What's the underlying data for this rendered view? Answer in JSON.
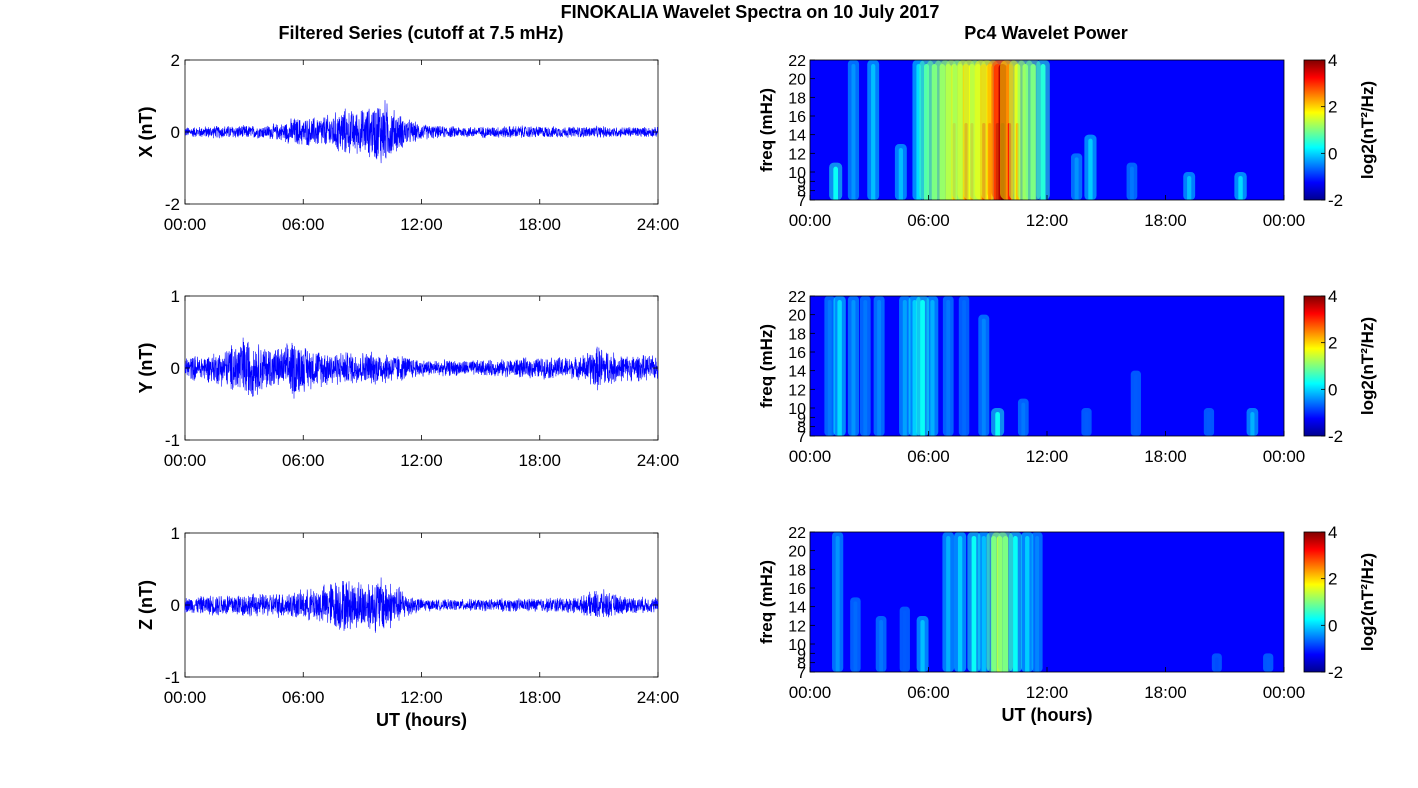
{
  "figure": {
    "title": "FINOKALIA Wavelet Spectra on 10 July 2017",
    "left_title": "Filtered Series (cutoff at 7.5 mHz)",
    "right_title": "Pc4 Wavelet Power"
  },
  "chart_data": [
    {
      "type": "line",
      "component": "X",
      "ylabel": "X (nT)",
      "xlabel": "",
      "color": "#0000ff",
      "xlim": [
        "00:00",
        "24:00"
      ],
      "ylim": [
        -2,
        2
      ],
      "yticks": [
        -2,
        0,
        2
      ],
      "xticks": [
        "00:00",
        "06:00",
        "12:00",
        "18:00",
        "24:00"
      ],
      "envelope_hours": [
        0,
        1,
        2,
        3,
        4,
        5,
        5.5,
        6,
        6.5,
        7,
        7.5,
        8,
        8.5,
        9,
        9.5,
        10,
        10.5,
        11,
        11.5,
        12,
        13,
        14,
        15,
        16,
        17,
        18,
        19,
        20,
        21,
        22,
        23,
        24
      ],
      "envelope_amp_nT": [
        0.15,
        0.18,
        0.2,
        0.2,
        0.2,
        0.28,
        0.45,
        0.42,
        0.45,
        0.5,
        0.55,
        0.75,
        0.65,
        0.7,
        0.8,
        1.1,
        0.75,
        0.5,
        0.35,
        0.25,
        0.18,
        0.17,
        0.17,
        0.18,
        0.2,
        0.18,
        0.17,
        0.17,
        0.18,
        0.16,
        0.16,
        0.15
      ]
    },
    {
      "type": "line",
      "component": "Y",
      "ylabel": "Y (nT)",
      "xlabel": "",
      "color": "#0000ff",
      "xlim": [
        "00:00",
        "24:00"
      ],
      "ylim": [
        -1,
        1
      ],
      "yticks": [
        -1,
        0,
        1
      ],
      "xticks": [
        "00:00",
        "06:00",
        "12:00",
        "18:00",
        "24:00"
      ],
      "envelope_hours": [
        0,
        1,
        2,
        3,
        4,
        5,
        5.5,
        6,
        6.5,
        7,
        8,
        9,
        10,
        11,
        12,
        13,
        14,
        15,
        16,
        17,
        18,
        19,
        20,
        21,
        22,
        23,
        24
      ],
      "envelope_amp_nT": [
        0.18,
        0.2,
        0.28,
        0.5,
        0.35,
        0.3,
        0.48,
        0.35,
        0.3,
        0.28,
        0.25,
        0.25,
        0.25,
        0.2,
        0.13,
        0.12,
        0.12,
        0.12,
        0.13,
        0.15,
        0.16,
        0.17,
        0.17,
        0.35,
        0.2,
        0.2,
        0.18
      ]
    },
    {
      "type": "line",
      "component": "Z",
      "ylabel": "Z (nT)",
      "xlabel": "UT (hours)",
      "color": "#0000ff",
      "xlim": [
        "00:00",
        "24:00"
      ],
      "ylim": [
        -1,
        1
      ],
      "yticks": [
        -1,
        0,
        1
      ],
      "xticks": [
        "00:00",
        "06:00",
        "12:00",
        "18:00",
        "24:00"
      ],
      "envelope_hours": [
        0,
        1,
        2,
        3,
        4,
        5,
        6,
        7,
        7.5,
        8,
        8.5,
        9,
        9.5,
        10,
        10.5,
        11,
        11.5,
        12,
        13,
        14,
        15,
        16,
        17,
        18,
        19,
        20,
        21,
        22,
        23,
        24
      ],
      "envelope_amp_nT": [
        0.12,
        0.14,
        0.18,
        0.18,
        0.17,
        0.2,
        0.22,
        0.3,
        0.38,
        0.42,
        0.38,
        0.38,
        0.4,
        0.45,
        0.35,
        0.25,
        0.15,
        0.1,
        0.08,
        0.09,
        0.09,
        0.1,
        0.1,
        0.11,
        0.12,
        0.12,
        0.25,
        0.15,
        0.12,
        0.12
      ]
    },
    {
      "type": "heatmap",
      "component": "X",
      "ylabel": "freq (mHz)",
      "xlabel": "",
      "xticks": [
        "00:00",
        "06:00",
        "12:00",
        "18:00",
        "00:00"
      ],
      "yticks": [
        7,
        8,
        9,
        10,
        12,
        14,
        16,
        18,
        20,
        22
      ],
      "ylim_mHz": [
        7,
        22
      ],
      "colorbar": {
        "label": "log2(nT²/Hz)",
        "range": [
          -2,
          4
        ],
        "ticks": [
          -2,
          0,
          2,
          4
        ],
        "colormap": "jet"
      },
      "background_power": -2,
      "streaks": [
        {
          "hour": 1.3,
          "power": 0.0,
          "fmax_mHz": 11
        },
        {
          "hour": 2.2,
          "power": -0.8,
          "fmax_mHz": 22
        },
        {
          "hour": 3.2,
          "power": -0.5,
          "fmax_mHz": 22
        },
        {
          "hour": 4.6,
          "power": -0.5,
          "fmax_mHz": 13
        },
        {
          "hour": 5.5,
          "power": -0.3,
          "fmax_mHz": 22
        },
        {
          "hour": 5.9,
          "power": 0.5,
          "fmax_mHz": 22
        },
        {
          "hour": 6.3,
          "power": 0.8,
          "fmax_mHz": 22
        },
        {
          "hour": 6.7,
          "power": 1.0,
          "fmax_mHz": 22
        },
        {
          "hour": 7.0,
          "power": 1.2,
          "fmax_mHz": 22
        },
        {
          "hour": 7.3,
          "power": 1.5,
          "fmax_mHz": 22
        },
        {
          "hour": 7.6,
          "power": 1.0,
          "fmax_mHz": 22
        },
        {
          "hour": 7.9,
          "power": 2.0,
          "fmax_mHz": 22
        },
        {
          "hour": 8.2,
          "power": 1.6,
          "fmax_mHz": 22
        },
        {
          "hour": 8.5,
          "power": 1.2,
          "fmax_mHz": 22
        },
        {
          "hour": 8.8,
          "power": 2.2,
          "fmax_mHz": 22
        },
        {
          "hour": 9.1,
          "power": 1.8,
          "fmax_mHz": 22
        },
        {
          "hour": 9.5,
          "power": 3.2,
          "fmax_mHz": 22
        },
        {
          "hour": 9.75,
          "power": 4.0,
          "fmax_mHz": 22
        },
        {
          "hour": 10.1,
          "power": 2.5,
          "fmax_mHz": 22
        },
        {
          "hour": 10.5,
          "power": 1.5,
          "fmax_mHz": 22
        },
        {
          "hour": 10.9,
          "power": 1.0,
          "fmax_mHz": 22
        },
        {
          "hour": 11.3,
          "power": 0.8,
          "fmax_mHz": 22
        },
        {
          "hour": 11.8,
          "power": 0.2,
          "fmax_mHz": 22
        },
        {
          "hour": 13.5,
          "power": -0.8,
          "fmax_mHz": 12
        },
        {
          "hour": 14.2,
          "power": -0.4,
          "fmax_mHz": 14
        },
        {
          "hour": 16.3,
          "power": -1.0,
          "fmax_mHz": 11
        },
        {
          "hour": 19.2,
          "power": -0.5,
          "fmax_mHz": 10
        },
        {
          "hour": 21.8,
          "power": -0.3,
          "fmax_mHz": 10
        }
      ]
    },
    {
      "type": "heatmap",
      "component": "Y",
      "ylabel": "freq (mHz)",
      "xlabel": "",
      "xticks": [
        "00:00",
        "06:00",
        "12:00",
        "18:00",
        "00:00"
      ],
      "yticks": [
        7,
        8,
        9,
        10,
        12,
        14,
        16,
        18,
        20,
        22
      ],
      "ylim_mHz": [
        7,
        22
      ],
      "colorbar": {
        "label": "log2(nT²/Hz)",
        "range": [
          -2,
          4
        ],
        "ticks": [
          -2,
          0,
          2,
          4
        ],
        "colormap": "jet"
      },
      "background_power": -2,
      "streaks": [
        {
          "hour": 1.0,
          "power": -1.0,
          "fmax_mHz": 22
        },
        {
          "hour": 1.5,
          "power": -0.3,
          "fmax_mHz": 22
        },
        {
          "hour": 2.2,
          "power": -0.8,
          "fmax_mHz": 22
        },
        {
          "hour": 2.8,
          "power": -1.0,
          "fmax_mHz": 22
        },
        {
          "hour": 3.5,
          "power": -0.9,
          "fmax_mHz": 22
        },
        {
          "hour": 4.8,
          "power": -0.7,
          "fmax_mHz": 22
        },
        {
          "hour": 5.3,
          "power": -0.4,
          "fmax_mHz": 22
        },
        {
          "hour": 5.7,
          "power": 0.0,
          "fmax_mHz": 22
        },
        {
          "hour": 6.2,
          "power": -0.6,
          "fmax_mHz": 22
        },
        {
          "hour": 7.0,
          "power": -1.0,
          "fmax_mHz": 22
        },
        {
          "hour": 7.8,
          "power": -1.1,
          "fmax_mHz": 22
        },
        {
          "hour": 8.8,
          "power": -0.9,
          "fmax_mHz": 20
        },
        {
          "hour": 9.5,
          "power": 0.0,
          "fmax_mHz": 10
        },
        {
          "hour": 10.8,
          "power": -1.0,
          "fmax_mHz": 11
        },
        {
          "hour": 14.0,
          "power": -1.2,
          "fmax_mHz": 10
        },
        {
          "hour": 16.5,
          "power": -1.2,
          "fmax_mHz": 14
        },
        {
          "hour": 20.2,
          "power": -1.2,
          "fmax_mHz": 10
        },
        {
          "hour": 22.4,
          "power": -0.6,
          "fmax_mHz": 10
        }
      ]
    },
    {
      "type": "heatmap",
      "component": "Z",
      "ylabel": "freq (mHz)",
      "xlabel": "UT (hours)",
      "xticks": [
        "00:00",
        "06:00",
        "12:00",
        "18:00",
        "00:00"
      ],
      "yticks": [
        7,
        8,
        9,
        10,
        12,
        14,
        16,
        18,
        20,
        22
      ],
      "ylim_mHz": [
        7,
        22
      ],
      "colorbar": {
        "label": "log2(nT²/Hz)",
        "range": [
          -2,
          4
        ],
        "ticks": [
          -2,
          0,
          2,
          4
        ],
        "colormap": "jet"
      },
      "background_power": -2,
      "streaks": [
        {
          "hour": 1.4,
          "power": -0.8,
          "fmax_mHz": 22
        },
        {
          "hour": 2.3,
          "power": -1.1,
          "fmax_mHz": 15
        },
        {
          "hour": 3.6,
          "power": -1.0,
          "fmax_mHz": 13
        },
        {
          "hour": 4.8,
          "power": -1.2,
          "fmax_mHz": 14
        },
        {
          "hour": 5.7,
          "power": -0.5,
          "fmax_mHz": 13
        },
        {
          "hour": 7.0,
          "power": -0.6,
          "fmax_mHz": 22
        },
        {
          "hour": 7.6,
          "power": -0.4,
          "fmax_mHz": 22
        },
        {
          "hour": 8.3,
          "power": 0.0,
          "fmax_mHz": 22
        },
        {
          "hour": 8.8,
          "power": -0.5,
          "fmax_mHz": 22
        },
        {
          "hour": 9.3,
          "power": 0.6,
          "fmax_mHz": 22
        },
        {
          "hour": 9.6,
          "power": 1.2,
          "fmax_mHz": 22
        },
        {
          "hour": 9.9,
          "power": 0.8,
          "fmax_mHz": 22
        },
        {
          "hour": 10.4,
          "power": 0.0,
          "fmax_mHz": 22
        },
        {
          "hour": 11.0,
          "power": -0.4,
          "fmax_mHz": 22
        },
        {
          "hour": 11.5,
          "power": -0.9,
          "fmax_mHz": 22
        },
        {
          "hour": 20.6,
          "power": -1.3,
          "fmax_mHz": 9
        },
        {
          "hour": 23.2,
          "power": -1.2,
          "fmax_mHz": 9
        }
      ]
    }
  ]
}
